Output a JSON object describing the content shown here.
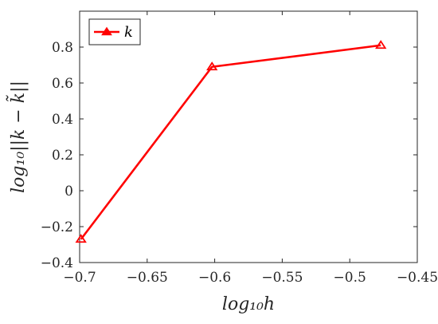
{
  "chart_data": {
    "type": "line",
    "x": [
      -0.699,
      -0.602,
      -0.477
    ],
    "series": [
      {
        "name": "k",
        "values": [
          -0.27,
          0.69,
          0.81
        ],
        "color": "#ff0000",
        "marker": "triangle-open"
      }
    ],
    "xlim": [
      -0.7,
      -0.45
    ],
    "ylim": [
      -0.4,
      1.0
    ],
    "xticks": [
      -0.7,
      -0.65,
      -0.6,
      -0.55,
      -0.5,
      -0.45
    ],
    "yticks": [
      -0.4,
      -0.2,
      0,
      0.2,
      0.4,
      0.6,
      0.8
    ],
    "xtick_labels": [
      "−0.7",
      "−0.65",
      "−0.6",
      "−0.55",
      "−0.5",
      "−0.45"
    ],
    "ytick_labels": [
      "−0.4",
      "−0.2",
      "0",
      "0.2",
      "0.4",
      "0.6",
      "0.8"
    ],
    "xlabel": "log₁₀h",
    "ylabel": "log₁₀||k − k̃||",
    "legend": {
      "location": "top-left",
      "entries": [
        "k"
      ]
    },
    "grid": false
  }
}
